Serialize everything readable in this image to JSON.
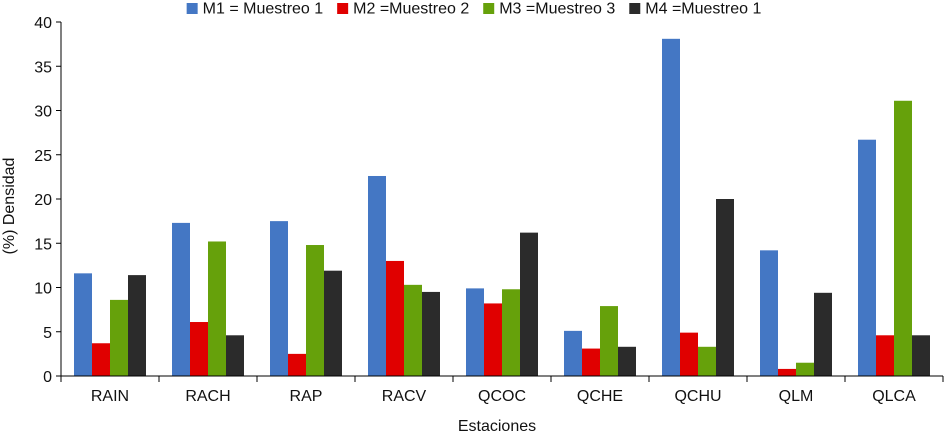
{
  "chart_data": {
    "type": "bar",
    "title": "",
    "xlabel": "Estaciones",
    "ylabel": "(%) Densidad",
    "ylim": [
      0,
      40
    ],
    "yticks": [
      0,
      5,
      10,
      15,
      20,
      25,
      30,
      35,
      40
    ],
    "categories": [
      "RAIN",
      "RACH",
      "RAP",
      "RACV",
      "QCOC",
      "QCHE",
      "QCHU",
      "QLM",
      "QLCA"
    ],
    "series": [
      {
        "name": "M1 = Muestreo 1",
        "color": "#4477c4",
        "values": [
          11.6,
          17.3,
          17.5,
          22.6,
          9.9,
          5.1,
          38.1,
          14.2,
          26.7
        ]
      },
      {
        "name": "M2 =Muestreo 2",
        "color": "#e00000",
        "values": [
          3.7,
          6.1,
          2.5,
          13.0,
          8.2,
          3.1,
          4.9,
          0.8,
          4.6
        ]
      },
      {
        "name": "M3 =Muestreo 3",
        "color": "#66a10b",
        "values": [
          8.6,
          15.2,
          14.8,
          10.3,
          9.8,
          7.9,
          3.3,
          1.5,
          31.1
        ]
      },
      {
        "name": "M4 =Muestreo 1",
        "color": "#2b2b2b",
        "values": [
          11.4,
          4.6,
          11.9,
          9.5,
          16.2,
          3.3,
          20.0,
          9.4,
          4.6
        ]
      }
    ],
    "legend_position": "top",
    "grid": false
  }
}
